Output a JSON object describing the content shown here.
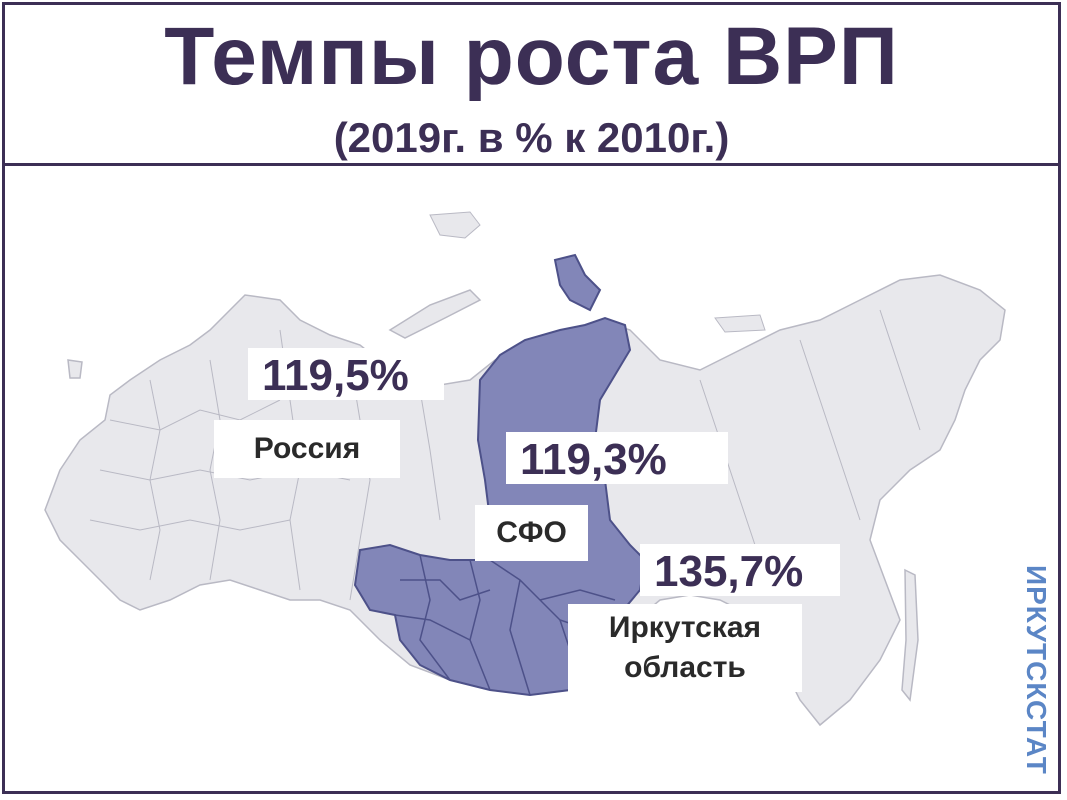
{
  "header": {
    "title": "Темпы роста ВРП",
    "subtitle": "(2019г. в % к 2010г.)"
  },
  "map_labels": {
    "russia": {
      "value": "119,5%",
      "name": "Россия"
    },
    "sfo": {
      "value": "119,3%",
      "name": "СФО"
    },
    "irkutsk": {
      "value": "135,7%",
      "name_line1": "Иркутская",
      "name_line2": "область"
    }
  },
  "watermark": "ИРКУТСКСТАТ",
  "colors": {
    "frame": "#3c2f55",
    "russia_fill": "#e8e8ec",
    "sfo_fill": "#8286b8",
    "region_borders": "#6b6f9a",
    "watermark": "#5b86c6"
  }
}
